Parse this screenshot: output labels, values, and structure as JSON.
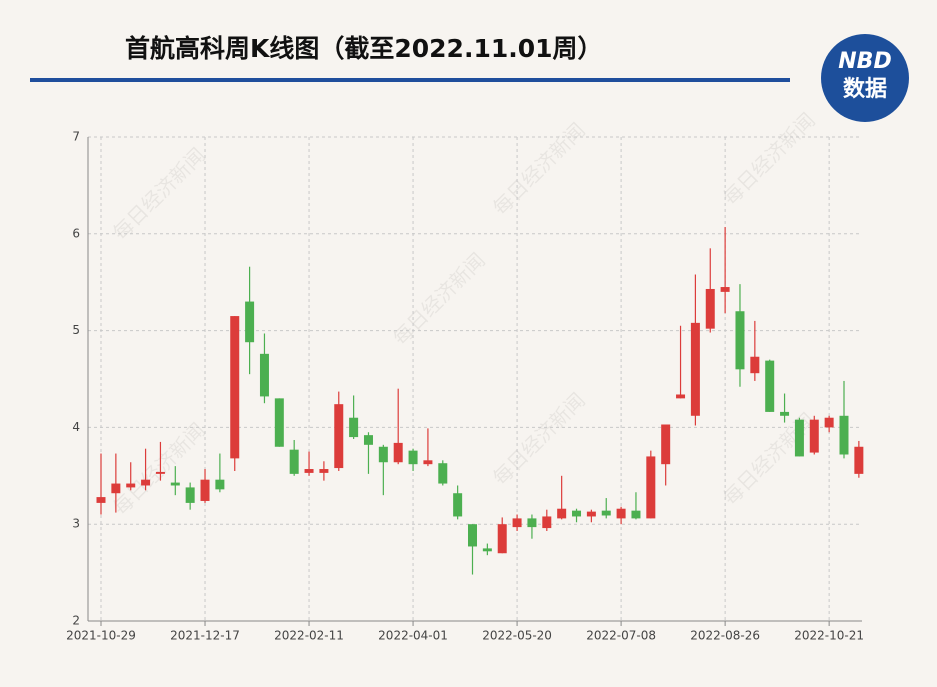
{
  "chart_data": {
    "type": "candlestick",
    "title": "首航高科周K线图（截至2022.11.01周）",
    "categories": [
      "2021-10-29",
      null,
      null,
      null,
      null,
      null,
      null,
      "2021-12-17",
      null,
      null,
      null,
      null,
      null,
      null,
      "2022-02-11",
      null,
      null,
      null,
      null,
      null,
      null,
      "2022-04-01",
      null,
      null,
      null,
      null,
      null,
      null,
      "2022-05-20",
      null,
      null,
      null,
      null,
      null,
      null,
      "2022-07-08",
      null,
      null,
      null,
      null,
      null,
      null,
      "2022-08-26",
      null,
      null,
      null,
      null,
      null,
      null,
      "2022-10-21",
      null,
      null
    ],
    "open": [
      3.22,
      3.32,
      3.38,
      3.4,
      3.52,
      3.43,
      3.38,
      3.24,
      3.46,
      3.68,
      5.3,
      4.76,
      4.3,
      3.77,
      3.53,
      3.53,
      3.58,
      4.1,
      3.92,
      3.8,
      3.64,
      3.76,
      3.62,
      3.63,
      3.32,
      3.0,
      2.75,
      2.7,
      2.97,
      3.06,
      2.96,
      3.06,
      3.14,
      3.08,
      3.14,
      3.06,
      3.14,
      3.06,
      3.62,
      4.3,
      4.12,
      5.02,
      5.4,
      5.2,
      4.56,
      4.69,
      4.16,
      4.08,
      3.74,
      4.0,
      4.12,
      3.52
    ],
    "high": [
      3.73,
      3.73,
      3.64,
      3.78,
      3.85,
      3.6,
      3.43,
      3.57,
      3.73,
      5.15,
      5.66,
      4.97,
      4.3,
      3.87,
      3.75,
      3.65,
      4.37,
      4.33,
      3.95,
      3.82,
      4.4,
      3.78,
      3.99,
      3.66,
      3.4,
      3.0,
      2.8,
      3.07,
      3.1,
      3.1,
      3.15,
      3.5,
      3.16,
      3.15,
      3.27,
      3.18,
      3.33,
      3.76,
      4.03,
      5.05,
      5.58,
      5.85,
      6.07,
      5.48,
      5.1,
      4.7,
      4.35,
      4.1,
      4.12,
      4.12,
      4.48,
      3.86
    ],
    "low": [
      3.1,
      3.12,
      3.35,
      3.35,
      3.45,
      3.3,
      3.15,
      3.22,
      3.33,
      3.55,
      4.55,
      4.25,
      3.8,
      3.5,
      3.5,
      3.45,
      3.55,
      3.88,
      3.52,
      3.3,
      3.62,
      3.55,
      3.6,
      3.4,
      3.05,
      2.48,
      2.68,
      2.7,
      2.93,
      2.85,
      2.93,
      3.05,
      3.02,
      3.02,
      3.06,
      3.0,
      3.05,
      3.06,
      3.4,
      4.3,
      4.02,
      4.98,
      5.18,
      4.42,
      4.48,
      4.16,
      4.05,
      3.7,
      3.72,
      3.95,
      3.68,
      3.48
    ],
    "close": [
      3.28,
      3.42,
      3.42,
      3.46,
      3.54,
      3.4,
      3.22,
      3.46,
      3.36,
      5.15,
      4.88,
      4.32,
      3.8,
      3.52,
      3.57,
      3.57,
      4.24,
      3.9,
      3.82,
      3.64,
      3.84,
      3.62,
      3.66,
      3.42,
      3.08,
      2.77,
      2.72,
      3.0,
      3.06,
      2.97,
      3.08,
      3.16,
      3.08,
      3.13,
      3.09,
      3.16,
      3.06,
      3.7,
      4.03,
      4.34,
      5.08,
      5.43,
      5.45,
      4.6,
      4.73,
      4.16,
      4.12,
      3.7,
      4.08,
      4.1,
      3.72,
      3.8
    ],
    "up_color": "#dc3c3a",
    "down_color": "#4caf50",
    "ylim": [
      2,
      7
    ],
    "yticks": [
      2,
      3,
      4,
      5,
      6,
      7
    ],
    "grid": true
  },
  "watermark": "每日经济新闻",
  "logo": {
    "brand": "NBD",
    "label": "数据"
  }
}
